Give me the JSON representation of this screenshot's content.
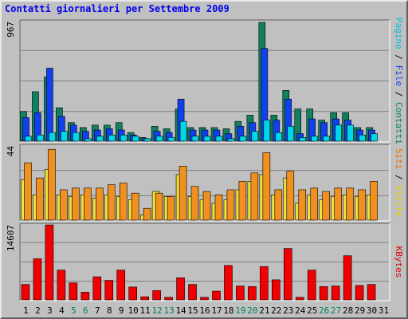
{
  "chart_data": [
    {
      "type": "bar",
      "title": "Contatti giornalieri per Settembre 2009",
      "ylabel_parts": [
        {
          "text": "Pagine",
          "color": "#00c0d8"
        },
        {
          "text": " / ",
          "color": "#000000"
        },
        {
          "text": "File",
          "color": "#1040f0"
        },
        {
          "text": " / ",
          "color": "#000000"
        },
        {
          "text": "Contatti",
          "color": "#008060"
        }
      ],
      "ymax_label": "967",
      "ylim": [
        0,
        967
      ],
      "categories": [
        "1",
        "2",
        "3",
        "4",
        "5",
        "6",
        "7",
        "8",
        "9",
        "10",
        "11",
        "12",
        "13",
        "14",
        "15",
        "16",
        "17",
        "18",
        "19",
        "20",
        "21",
        "22",
        "23",
        "24",
        "25",
        "26",
        "27",
        "28",
        "29",
        "30",
        "31"
      ],
      "weekend_days": [
        "5",
        "6",
        "12",
        "13",
        "19",
        "20",
        "26",
        "27"
      ],
      "series": [
        {
          "name": "Contatti",
          "color": "#108060",
          "values": [
            240,
            400,
            520,
            270,
            150,
            110,
            130,
            130,
            150,
            70,
            30,
            120,
            100,
            260,
            110,
            110,
            110,
            100,
            160,
            210,
            960,
            210,
            410,
            260,
            260,
            170,
            230,
            230,
            110,
            110,
            0
          ]
        },
        {
          "name": "File",
          "color": "#1040f0",
          "values": [
            190,
            230,
            590,
            200,
            130,
            80,
            90,
            100,
            90,
            50,
            20,
            80,
            70,
            340,
            90,
            90,
            90,
            60,
            120,
            150,
            750,
            170,
            340,
            60,
            180,
            150,
            180,
            170,
            90,
            90,
            0
          ]
        },
        {
          "name": "Pagine",
          "color": "#00d8e8",
          "values": [
            40,
            50,
            70,
            80,
            70,
            20,
            40,
            50,
            50,
            40,
            20,
            40,
            30,
            160,
            40,
            40,
            40,
            20,
            40,
            80,
            170,
            70,
            120,
            30,
            40,
            40,
            130,
            130,
            50,
            60,
            0
          ]
        }
      ]
    },
    {
      "type": "bar",
      "ylabel_parts": [
        {
          "text": "Siti",
          "color": "#f07000"
        },
        {
          "text": " / ",
          "color": "#000000"
        },
        {
          "text": "Visite",
          "color": "#e0d000"
        }
      ],
      "ymax_label": "44",
      "ylim": [
        0,
        44
      ],
      "categories": [
        "1",
        "2",
        "3",
        "4",
        "5",
        "6",
        "7",
        "8",
        "9",
        "10",
        "11",
        "12",
        "13",
        "14",
        "15",
        "16",
        "17",
        "18",
        "19",
        "20",
        "21",
        "22",
        "23",
        "24",
        "25",
        "26",
        "27",
        "28",
        "29",
        "30",
        "31"
      ],
      "series": [
        {
          "name": "Visite",
          "color": "#f0e040",
          "values": [
            24,
            15,
            30,
            15,
            14,
            15,
            13,
            15,
            14,
            12,
            3,
            17,
            14,
            27,
            14,
            12,
            10,
            12,
            18,
            23,
            27,
            15,
            25,
            10,
            15,
            12,
            14,
            15,
            14,
            15,
            0
          ]
        },
        {
          "name": "Siti",
          "color": "#f09020",
          "values": [
            34,
            25,
            42,
            18,
            19,
            19,
            19,
            21,
            22,
            16,
            7,
            16,
            14,
            32,
            20,
            17,
            15,
            18,
            23,
            28,
            40,
            18,
            29,
            18,
            19,
            17,
            19,
            19,
            18,
            23,
            0
          ]
        }
      ]
    },
    {
      "type": "bar",
      "ylabel_parts": [
        {
          "text": "KBytes",
          "color": "#e00000"
        }
      ],
      "ymax_label": "14607",
      "ylim": [
        0,
        14607
      ],
      "categories": [
        "1",
        "2",
        "3",
        "4",
        "5",
        "6",
        "7",
        "8",
        "9",
        "10",
        "11",
        "12",
        "13",
        "14",
        "15",
        "16",
        "17",
        "18",
        "19",
        "20",
        "21",
        "22",
        "23",
        "24",
        "25",
        "26",
        "27",
        "28",
        "29",
        "30",
        "31"
      ],
      "series": [
        {
          "name": "KBytes",
          "color": "#f00000",
          "values": [
            3000,
            8000,
            14600,
            5800,
            3300,
            1500,
            4500,
            3800,
            5800,
            2500,
            600,
            1800,
            500,
            4300,
            3000,
            500,
            1700,
            6700,
            2700,
            2600,
            6500,
            3900,
            10000,
            500,
            5800,
            2600,
            2700,
            8600,
            2800,
            3000,
            0
          ]
        }
      ]
    }
  ]
}
